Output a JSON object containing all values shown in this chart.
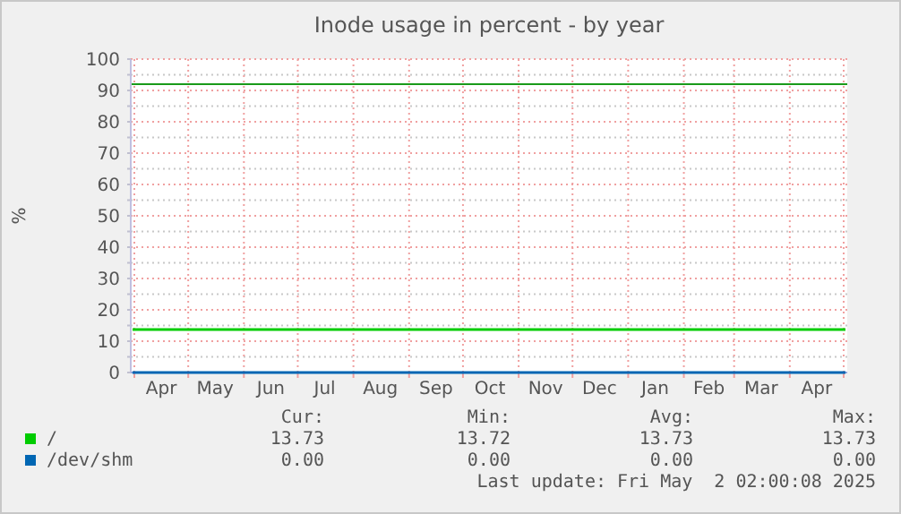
{
  "chart_data": {
    "type": "line",
    "title": "Inode usage in percent - by year",
    "ylabel": "%",
    "x": [
      "2024-03-31",
      "2024-10-15",
      "2025-05-02"
    ],
    "series": [
      {
        "name": "/",
        "color": "#00cc00",
        "values": [
          13.7,
          13.7,
          13.7
        ]
      },
      {
        "name": "/dev/shm",
        "color": "#0066b3",
        "values": [
          0,
          0,
          0
        ]
      }
    ],
    "xlim": [
      "2024-03-30",
      "2025-05-03"
    ],
    "xticks": [
      {
        "value": "2024-04-01",
        "label": null
      },
      {
        "value": "2024-04-16",
        "label": "Apr"
      },
      {
        "value": "2024-05-01",
        "label": null
      },
      {
        "value": "2024-05-16",
        "label": "May"
      },
      {
        "value": "2024-06-01",
        "label": null
      },
      {
        "value": "2024-06-16",
        "label": "Jun"
      },
      {
        "value": "2024-07-01",
        "label": null
      },
      {
        "value": "2024-07-16",
        "label": "Jul"
      },
      {
        "value": "2024-08-01",
        "label": null
      },
      {
        "value": "2024-08-16",
        "label": "Aug"
      },
      {
        "value": "2024-09-01",
        "label": null
      },
      {
        "value": "2024-09-16",
        "label": "Sep"
      },
      {
        "value": "2024-10-01",
        "label": null
      },
      {
        "value": "2024-10-16",
        "label": "Oct"
      },
      {
        "value": "2024-11-01",
        "label": null
      },
      {
        "value": "2024-11-16",
        "label": "Nov"
      },
      {
        "value": "2024-12-01",
        "label": null
      },
      {
        "value": "2024-12-16",
        "label": "Dec"
      },
      {
        "value": "2025-01-01",
        "label": null
      },
      {
        "value": "2025-01-16",
        "label": "Jan"
      },
      {
        "value": "2025-02-01",
        "label": null
      },
      {
        "value": "2025-02-15",
        "label": "Feb"
      },
      {
        "value": "2025-03-01",
        "label": null
      },
      {
        "value": "2025-03-16",
        "label": "Mar"
      },
      {
        "value": "2025-04-01",
        "label": null
      },
      {
        "value": "2025-04-16",
        "label": "Apr"
      },
      {
        "value": "2025-05-01",
        "label": null
      }
    ],
    "ylim": [
      0,
      100
    ],
    "yticks": [
      0,
      {
        "value": 5,
        "label": null
      },
      10,
      {
        "value": 15,
        "label": null
      },
      20,
      {
        "value": 25,
        "label": null
      },
      30,
      {
        "value": 35,
        "label": null
      },
      40,
      {
        "value": 45,
        "label": null
      },
      50,
      {
        "value": 55,
        "label": null
      },
      60,
      {
        "value": 65,
        "label": null
      },
      70,
      {
        "value": 75,
        "label": null
      },
      80,
      {
        "value": 85,
        "label": null
      },
      90,
      {
        "value": 95,
        "label": null
      },
      100
    ],
    "ref_lines": [
      {
        "axis": "y",
        "value": 92,
        "color": "#1a9a1a"
      }
    ],
    "grid": true,
    "legend": "bottom left",
    "annotations": [
      "Cur:",
      "Min:",
      "Avg:",
      "Max:",
      "13.73",
      "13.72",
      "13.73",
      "13.73",
      "0.00",
      "0.00",
      "0.00",
      "0.00",
      "Last update: Fri May  2 02:00:08 2025"
    ]
  }
}
